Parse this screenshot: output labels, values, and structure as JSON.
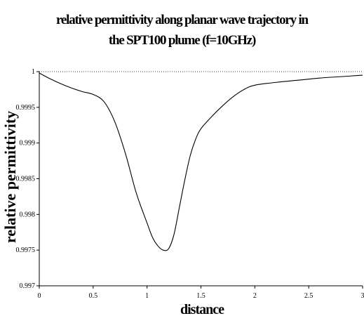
{
  "chart_data": {
    "type": "line",
    "title": [
      "relative permittivity along planar wave trajectory in",
      "the SPT100 plume (f=10GHz)"
    ],
    "xlabel": "distance",
    "ylabel": "relative permittivity",
    "xlim": [
      0,
      3
    ],
    "ylim": [
      0.997,
      1
    ],
    "x_ticks": [
      0,
      0.5,
      1,
      1.5,
      2,
      2.5,
      3
    ],
    "x_tick_labels": [
      "0",
      "0.5",
      "1",
      "1.5",
      "2",
      "2.5",
      "3"
    ],
    "y_ticks": [
      0.997,
      0.9975,
      0.998,
      0.9985,
      0.999,
      0.9995,
      1
    ],
    "y_tick_labels": [
      "0.997",
      "0.9975",
      "0.998",
      "0.9985",
      "0.999",
      "0.9995",
      "1"
    ],
    "grid": false,
    "reference_line": {
      "y": 1,
      "style": "dotted"
    },
    "series": [
      {
        "x": [
          0,
          0.1,
          0.2,
          0.3,
          0.4,
          0.5,
          0.6,
          0.7,
          0.8,
          0.9,
          1.0,
          1.05,
          1.1,
          1.15,
          1.2,
          1.25,
          1.3,
          1.35,
          1.4,
          1.45,
          1.5,
          1.6,
          1.7,
          1.8,
          1.9,
          2.0,
          2.2,
          2.4,
          2.6,
          2.8,
          3.0
        ],
        "y": [
          0.99998,
          0.9999,
          0.99983,
          0.99977,
          0.99972,
          0.99968,
          0.99958,
          0.9993,
          0.99885,
          0.9983,
          0.99788,
          0.99768,
          0.99756,
          0.9975,
          0.99752,
          0.99772,
          0.9981,
          0.99848,
          0.99882,
          0.99905,
          0.9992,
          0.99937,
          0.99952,
          0.99965,
          0.99975,
          0.99981,
          0.99985,
          0.99988,
          0.99991,
          0.99993,
          0.99995
        ],
        "color": "#000000"
      }
    ]
  }
}
